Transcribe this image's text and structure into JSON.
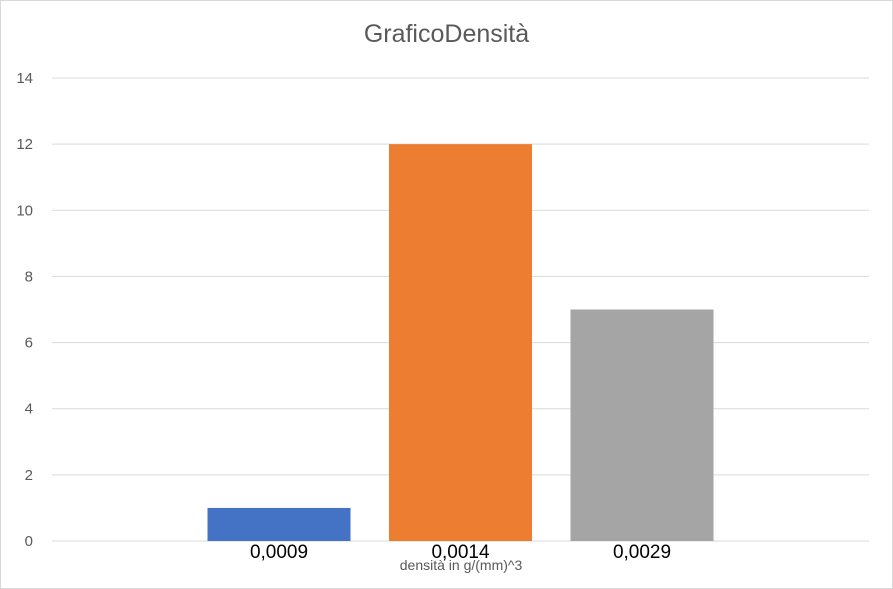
{
  "chart_data": {
    "type": "bar",
    "title": "GraficoDensità",
    "xlabel": "densità in g/(mm)^3",
    "ylabel": "",
    "categories": [
      "0,0009",
      "0,0014",
      "0,0029"
    ],
    "values": [
      1,
      12,
      7
    ],
    "colors": [
      "#4472c4",
      "#ed7d31",
      "#a5a5a5"
    ],
    "ylim": [
      0,
      14
    ],
    "yticks": [
      0,
      2,
      4,
      6,
      8,
      10,
      12,
      14
    ],
    "grid": true,
    "legend": "none"
  }
}
